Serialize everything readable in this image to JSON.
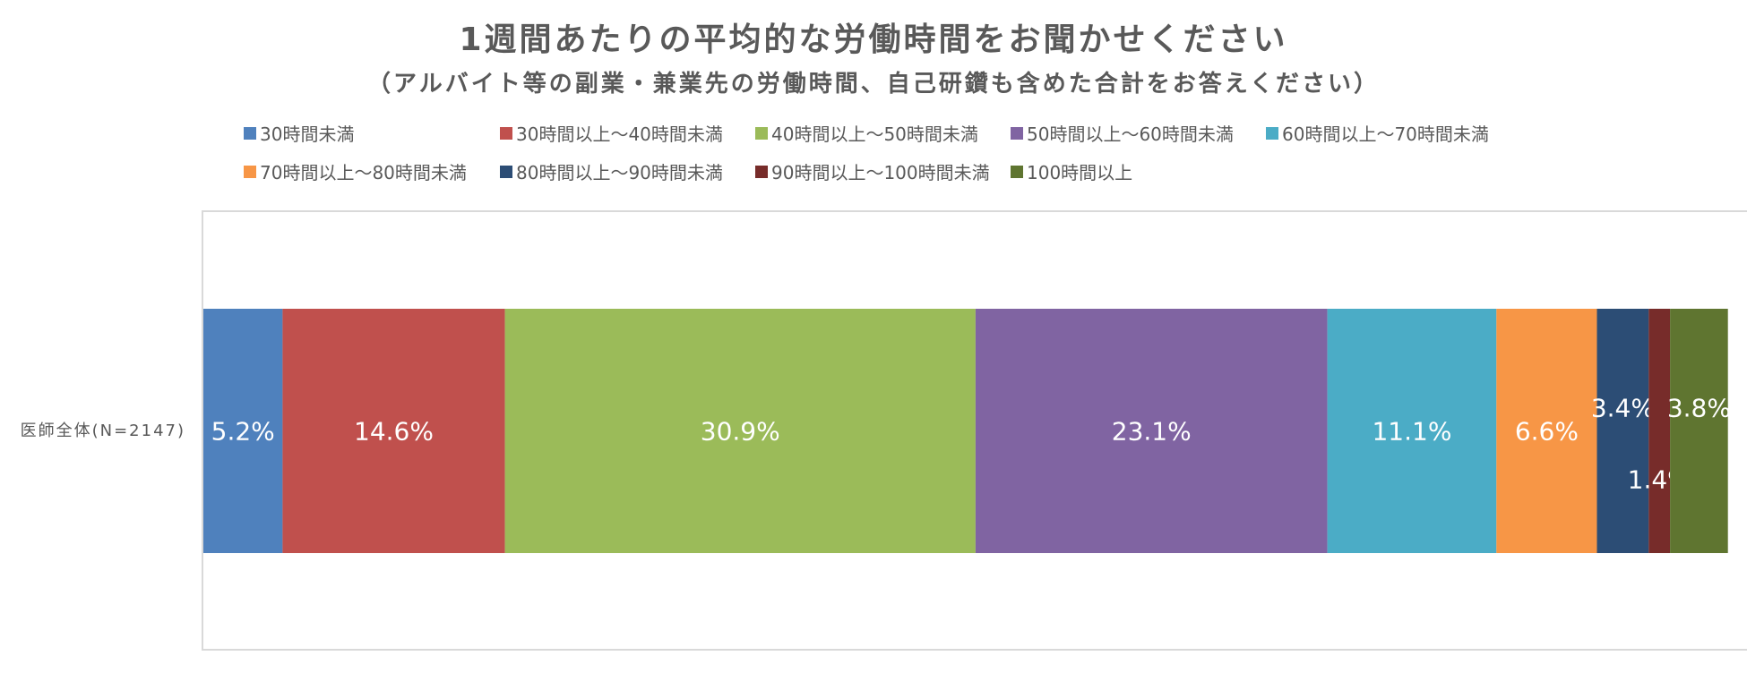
{
  "chart_data": {
    "type": "bar",
    "orientation": "horizontal",
    "stacked": true,
    "title": "1週間あたりの平均的な労働時間をお聞かせください",
    "subtitle": "（アルバイト等の副業・兼業先の労働時間、自己研鑽も含めた合計をお答えください）",
    "categories": [
      "医師全体(N=2147)"
    ],
    "unit": "%",
    "xlim": [
      0,
      100
    ],
    "grid": false,
    "legend_position": "top",
    "series": [
      {
        "name": "30時間未満",
        "values": [
          5.2
        ],
        "label": "5.2%",
        "color": "#4F81BD"
      },
      {
        "name": "30時間以上～40時間未満",
        "values": [
          14.6
        ],
        "label": "14.6%",
        "color": "#C0504D"
      },
      {
        "name": "40時間以上～50時間未満",
        "values": [
          30.9
        ],
        "label": "30.9%",
        "color": "#9BBB59"
      },
      {
        "name": "50時間以上～60時間未満",
        "values": [
          23.1
        ],
        "label": "23.1%",
        "color": "#8064A2"
      },
      {
        "name": "60時間以上～70時間未満",
        "values": [
          11.1
        ],
        "label": "11.1%",
        "color": "#4BACC6"
      },
      {
        "name": "70時間以上～80時間未満",
        "values": [
          6.6
        ],
        "label": "6.6%",
        "color": "#F79646"
      },
      {
        "name": "80時間以上～90時間未満",
        "values": [
          3.4
        ],
        "label": "3.4%",
        "color": "#2C4D75"
      },
      {
        "name": "90時間以上～100時間未満",
        "values": [
          1.4
        ],
        "label": "1.4%",
        "color": "#772C2A"
      },
      {
        "name": "100時間以上",
        "values": [
          3.8
        ],
        "label": "3.8%",
        "color": "#5F7530"
      }
    ]
  }
}
